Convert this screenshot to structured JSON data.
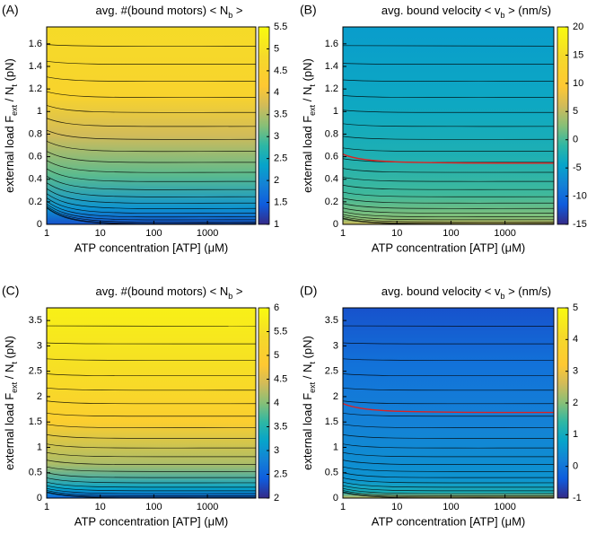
{
  "chart_data": [
    {
      "type": "contour",
      "panel": "(A)",
      "title": [
        "avg. #(bound motors)  < N",
        "b",
        " >"
      ],
      "xlabel": "ATP concentration  [ATP] (μM)",
      "ylabel": [
        "external load  F",
        "ext",
        " / N",
        "t",
        " (pN)"
      ],
      "xscale": "log",
      "xlim": [
        1,
        8000
      ],
      "xticks": [
        1,
        10,
        100,
        1000
      ],
      "ylim": [
        0,
        1.75
      ],
      "yticks": [
        0,
        0.2,
        0.4,
        0.6,
        0.8,
        1,
        1.2,
        1.4,
        1.6
      ],
      "colorbar": {
        "lim": [
          1,
          5.5
        ],
        "ticks": [
          1,
          1.5,
          2,
          2.5,
          3,
          3.5,
          4,
          4.5,
          5,
          5.5
        ]
      }
    },
    {
      "type": "contour",
      "panel": "(B)",
      "title": [
        "avg. bound velocity  < v",
        "b",
        " > (nm/s)"
      ],
      "xlabel": "ATP concentration  [ATP] (μM)",
      "ylabel": [
        "external load  F",
        "ext",
        " / N",
        "t",
        " (pN)"
      ],
      "xscale": "log",
      "xlim": [
        1,
        8000
      ],
      "xticks": [
        1,
        10,
        100,
        1000
      ],
      "ylim": [
        0,
        1.75
      ],
      "yticks": [
        0,
        0.2,
        0.4,
        0.6,
        0.8,
        1,
        1.2,
        1.4,
        1.6
      ],
      "colorbar": {
        "lim": [
          -15,
          20
        ],
        "ticks": [
          -15,
          -10,
          -5,
          0,
          5,
          10,
          15,
          20
        ]
      }
    },
    {
      "type": "contour",
      "panel": "(C)",
      "title": [
        "avg. #(bound motors)  < N",
        "b",
        " >"
      ],
      "xlabel": "ATP concentration  [ATP] (μM)",
      "ylabel": [
        "external load  F",
        "ext",
        " / N",
        "t",
        " (pN)"
      ],
      "xscale": "log",
      "xlim": [
        1,
        8000
      ],
      "xticks": [
        1,
        10,
        100,
        1000
      ],
      "ylim": [
        0,
        3.75
      ],
      "yticks": [
        0,
        0.5,
        1,
        1.5,
        2,
        2.5,
        3,
        3.5
      ],
      "colorbar": {
        "lim": [
          2,
          6
        ],
        "ticks": [
          2,
          2.5,
          3,
          3.5,
          4,
          4.5,
          5,
          5.5,
          6
        ]
      }
    },
    {
      "type": "contour",
      "panel": "(D)",
      "title": [
        "avg. bound velocity  < v",
        "b",
        " > (nm/s)"
      ],
      "xlabel": "ATP concentration  [ATP] (μM)",
      "ylabel": [
        "external load  F",
        "ext",
        " / N",
        "t",
        " (pN)"
      ],
      "xscale": "log",
      "xlim": [
        1,
        8000
      ],
      "xticks": [
        1,
        10,
        100,
        1000
      ],
      "ylim": [
        0,
        3.75
      ],
      "yticks": [
        0,
        0.5,
        1,
        1.5,
        2,
        2.5,
        3,
        3.5
      ],
      "colorbar": {
        "lim": [
          -1,
          5
        ],
        "ticks": [
          -1,
          0,
          1,
          2,
          3,
          4,
          5
        ]
      }
    }
  ]
}
